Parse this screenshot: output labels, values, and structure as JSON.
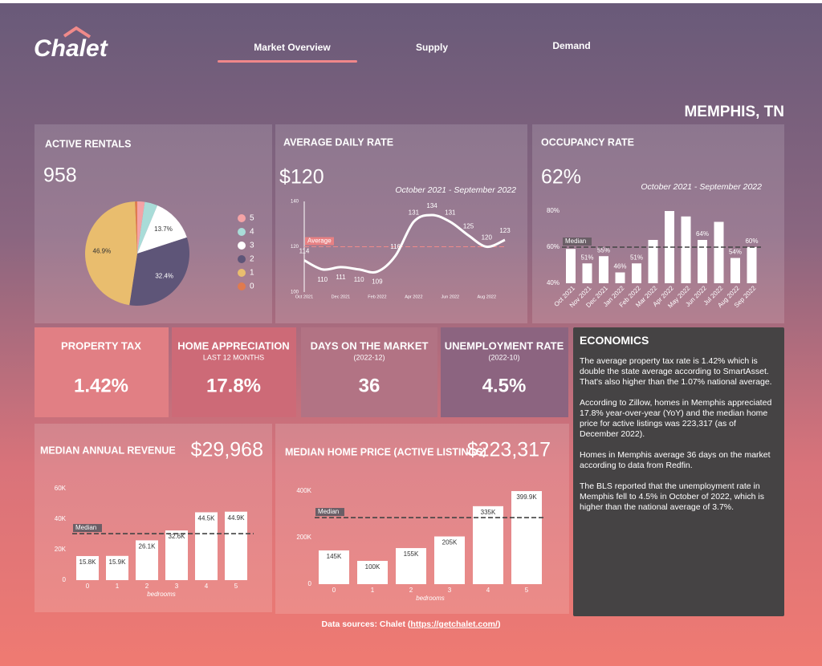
{
  "header": {
    "logo": "Chalet",
    "nav": [
      "Market Overview",
      "Supply",
      "Demand"
    ],
    "location": "MEMPHIS, TN"
  },
  "chart_data": [
    {
      "type": "pie",
      "title": "ACTIVE RENTALS",
      "headline": "958",
      "categories": [
        "5",
        "4",
        "3",
        "2",
        "1",
        "0"
      ],
      "values": [
        2.3,
        4.0,
        13.7,
        32.4,
        46.9,
        0.7
      ],
      "value_labels": [
        null,
        null,
        "13.7%",
        "32.4%",
        "46.9%",
        null
      ],
      "colors": [
        "#f4a3a6",
        "#a9dcd8",
        "#ffffff",
        "#5e5578",
        "#e9bd6e",
        "#e07a4f"
      ]
    },
    {
      "type": "line",
      "title": "AVERAGE DAILY RATE",
      "headline": "$120",
      "subtitle": "October 2021 - September 2022",
      "categories": [
        "Oct 2021",
        null,
        "Dec 2021",
        null,
        "Feb 2022",
        null,
        "Apr 2022",
        null,
        "Jun 2022",
        null,
        "Aug 2022",
        null
      ],
      "values": [
        114,
        110,
        111,
        110,
        109,
        116,
        131,
        134,
        131,
        125,
        120,
        123
      ],
      "color": "#ffffff",
      "ylim": [
        100,
        140
      ],
      "yticks": [
        100,
        120,
        140
      ],
      "reference": {
        "label": "Average",
        "value": 120
      }
    },
    {
      "type": "bar",
      "title": "OCCUPANCY RATE",
      "headline": "62%",
      "subtitle": "October 2021 - September 2022",
      "categories": [
        "Oct 2021",
        "Nov 2021",
        "Dec 2021",
        "Jan 2022",
        "Feb 2022",
        "Mar 2022",
        "Apr 2022",
        "May 2022",
        "Jun 2022",
        "Jul 2022",
        "Aug 2022",
        "Sep 2022"
      ],
      "values": [
        59,
        51,
        55,
        46,
        51,
        64,
        80,
        77,
        64,
        74,
        54,
        60
      ],
      "value_labels": [
        null,
        "51%",
        "55%",
        "46%",
        "51%",
        null,
        null,
        null,
        "64%",
        null,
        "54%",
        "60%"
      ],
      "color": "#ffffff",
      "ylim": [
        40,
        82
      ],
      "yticks": [
        {
          "value": 40,
          "label": "40%"
        },
        {
          "value": 60,
          "label": "60%"
        },
        {
          "value": 80,
          "label": "80%"
        }
      ],
      "reference": {
        "label": "Median",
        "value": 60
      }
    },
    {
      "type": "bar",
      "title": "MEDIAN ANNUAL REVENUE",
      "headline": "$29,968",
      "xlabel": "bedrooms",
      "categories": [
        "0",
        "1",
        "2",
        "3",
        "4",
        "5"
      ],
      "values": [
        15800,
        15900,
        26100,
        32600,
        44500,
        44900
      ],
      "value_labels": [
        "15.8K",
        "15.9K",
        "26.1K",
        "32.6K",
        "44.5K",
        "44.9K"
      ],
      "color": "#ffffff",
      "ylim": [
        0,
        60000
      ],
      "yticks": [
        0,
        {
          "value": 20000,
          "label": "20K"
        },
        {
          "value": 40000,
          "label": "40K"
        },
        {
          "value": 60000,
          "label": "60K"
        }
      ],
      "reference": {
        "label": "Median",
        "value": 30500
      }
    },
    {
      "type": "bar",
      "title": "MEDIAN HOME PRICE (ACTIVE LISTINGS)",
      "headline": "$223,317",
      "xlabel": "bedrooms",
      "categories": [
        "0",
        "1",
        "2",
        "3",
        "4",
        "5"
      ],
      "values": [
        145000,
        100000,
        155000,
        205000,
        335000,
        399900
      ],
      "value_labels": [
        "145K",
        "100K",
        "155K",
        "205K",
        "335K",
        "399.9K"
      ],
      "color": "#ffffff",
      "ylim": [
        0,
        400000
      ],
      "yticks": [
        0,
        {
          "value": 200000,
          "label": "200K"
        },
        {
          "value": 400000,
          "label": "400K"
        }
      ],
      "reference": {
        "label": "Median",
        "value": 286000
      }
    }
  ],
  "kpis": [
    {
      "title": "PROPERTY TAX",
      "value": "1.42%"
    },
    {
      "title": "HOME APPRECIATION",
      "subtitle": "LAST 12 MONTHS",
      "value": "17.8%"
    },
    {
      "title": "DAYS ON THE MARKET",
      "subtitle": "(2022-12)",
      "value": 36
    },
    {
      "title": "UNEMPLOYMENT RATE",
      "subtitle": "(2022-10)",
      "value": "4.5%"
    }
  ],
  "economics": {
    "title": "ECONOMICS",
    "paragraphs": [
      "The average property tax rate is 1.42% which is double the state average according to SmartAsset. That's also higher than the 1.07% national average.",
      "According to Zillow, homes in Memphis appreciated 17.8% year-over-year (YoY) and the median home price for active listings was 223,317 (as of December 2022).",
      "Homes in Memphis average 36 days on the market according to data from Redfin.",
      "The BLS reported that the unemployment rate in Memphis fell to 4.5% in October of 2022, which is higher than the national average of 3.7%."
    ]
  },
  "footer": {
    "text": "Data sources: Chalet (",
    "link": "https://getchalet.com/",
    "close": ")"
  }
}
